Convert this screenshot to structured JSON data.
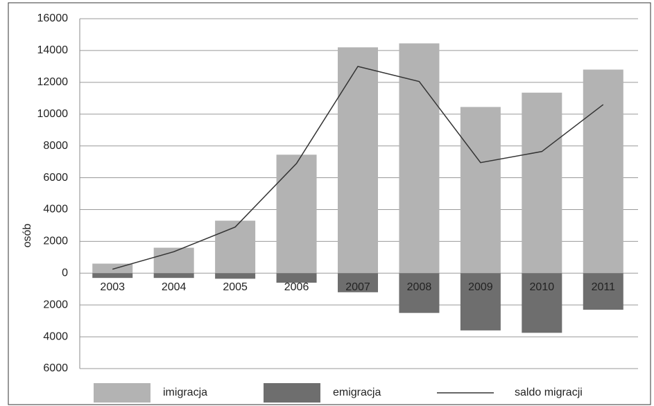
{
  "chart_data": {
    "type": "bar_line",
    "y_label": "osób",
    "categories": [
      "2003",
      "2004",
      "2005",
      "2006",
      "2007",
      "2008",
      "2009",
      "2010",
      "2011"
    ],
    "series": [
      {
        "name": "imigracja",
        "type": "bar",
        "color": "#b3b3b3",
        "values": [
          600,
          1600,
          3300,
          7450,
          14200,
          14450,
          10450,
          11350,
          12800
        ]
      },
      {
        "name": "emigracja",
        "type": "bar",
        "color": "#6e6e6e",
        "values": [
          -300,
          -300,
          -350,
          -600,
          -1200,
          -2500,
          -3600,
          -3750,
          -2300
        ]
      },
      {
        "name": "saldo migracji",
        "type": "line",
        "color": "#333333",
        "values": [
          250,
          1350,
          2900,
          6900,
          13000,
          12050,
          6950,
          7650,
          10600
        ]
      }
    ],
    "ylim": [
      -6000,
      16000
    ],
    "yticks": [
      {
        "value": -6000,
        "label": "6000"
      },
      {
        "value": -4000,
        "label": "4000"
      },
      {
        "value": -2000,
        "label": "2000"
      },
      0,
      2000,
      4000,
      6000,
      8000,
      10000,
      12000,
      14000,
      16000
    ],
    "grid": true
  }
}
